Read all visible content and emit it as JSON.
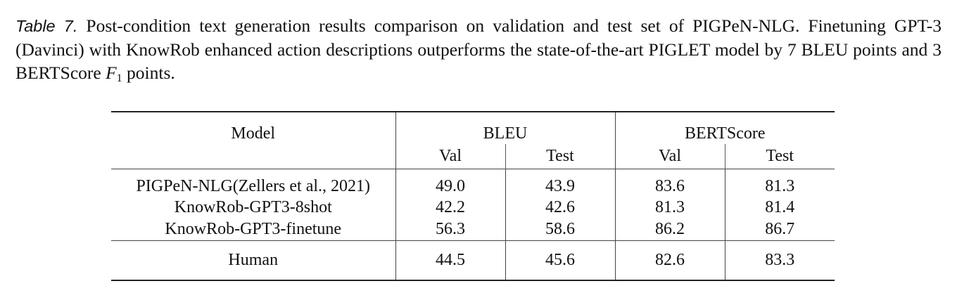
{
  "caption": {
    "label": "Table 7.",
    "text_part1": " Post-condition text generation results comparison on validation and test set of PIGPeN-NLG. Finetuning GPT-3 (Davinci) with KnowRob enhanced action descriptions outperforms the state-of-the-art PIGLET model by 7 BLEU points and 3 BERTScore ",
    "math_var": "F",
    "math_sub": "1",
    "text_part2": " points."
  },
  "table": {
    "headers": {
      "model": "Model",
      "bleu": "BLEU",
      "bertscore": "BERTScore",
      "bleu_val": "Val",
      "bleu_test": "Test",
      "bert_val": "Val",
      "bert_test": "Test"
    },
    "rows": [
      {
        "model": "PIGPeN-NLG(Zellers et al., 2021)",
        "bleu_val": "49.0",
        "bleu_test": "43.9",
        "bert_val": "83.6",
        "bert_test": "81.3",
        "bold": false
      },
      {
        "model": "KnowRob-GPT3-8shot",
        "bleu_val": "42.2",
        "bleu_test": "42.6",
        "bert_val": "81.3",
        "bert_test": "81.4",
        "bold": false
      },
      {
        "model": "KnowRob-GPT3-finetune",
        "bleu_val": "56.3",
        "bleu_test": "58.6",
        "bert_val": "86.2",
        "bert_test": "86.7",
        "bold": true
      }
    ],
    "human": {
      "model": "Human",
      "bleu_val": "44.5",
      "bleu_test": "45.6",
      "bert_val": "82.6",
      "bert_test": "83.3"
    }
  }
}
